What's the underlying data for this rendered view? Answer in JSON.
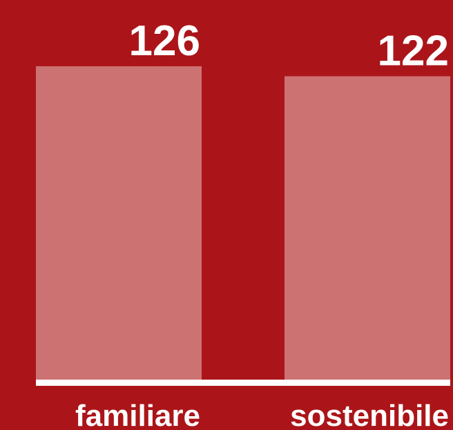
{
  "chart_data": {
    "type": "bar",
    "categories": [
      "familiare",
      "sostenibile"
    ],
    "values": [
      126,
      122
    ],
    "color": "#cd7272",
    "ylim": [
      0,
      130
    ]
  }
}
